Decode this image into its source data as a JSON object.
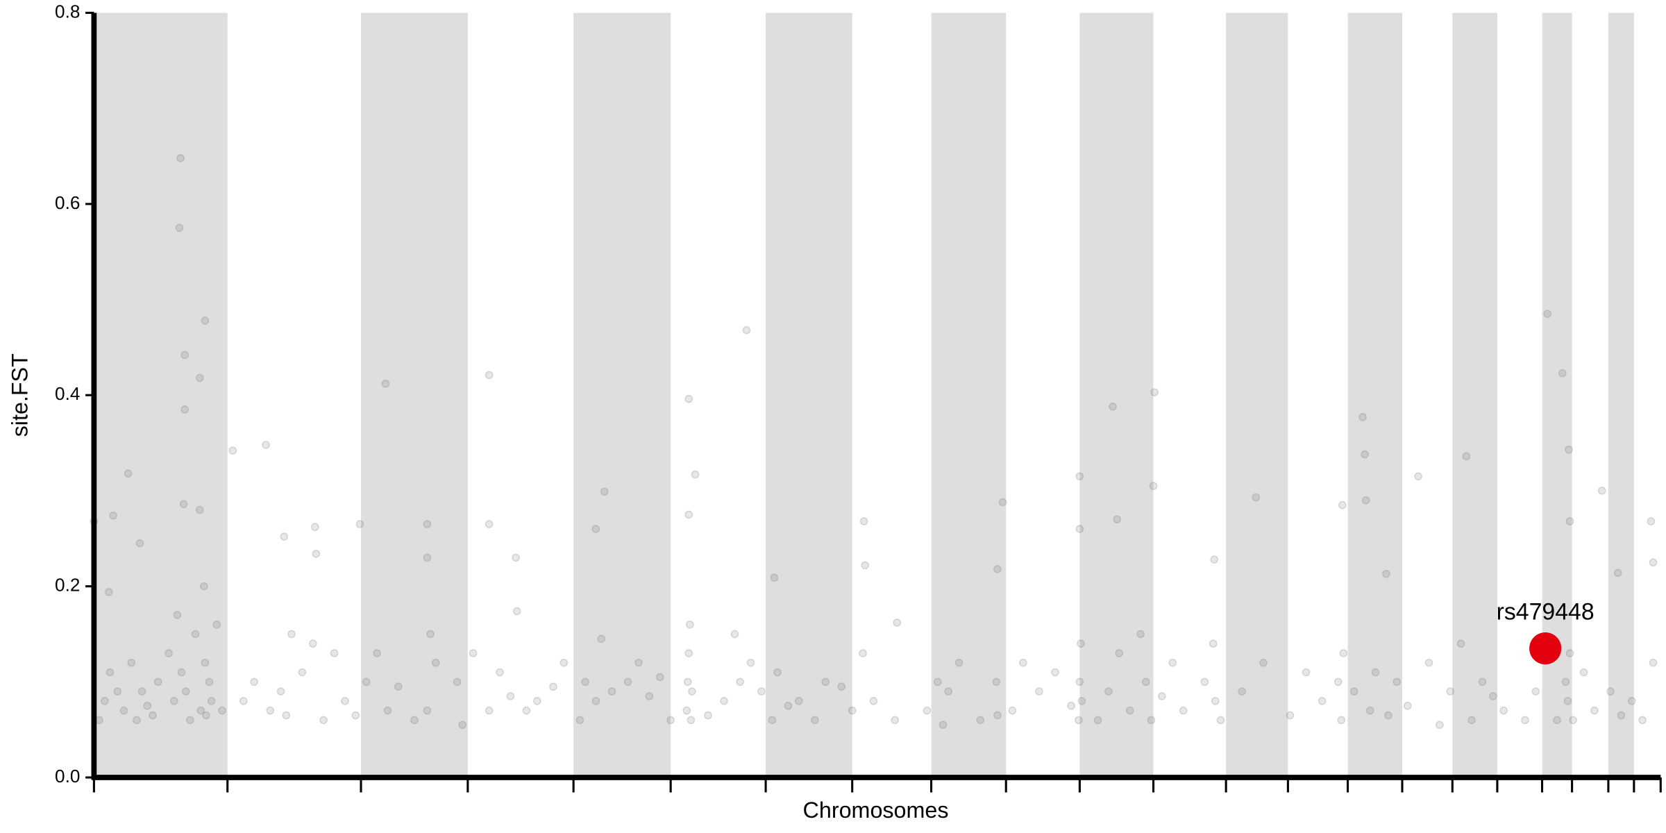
{
  "chart_data": {
    "type": "scatter",
    "xlabel": "Chromosomes",
    "ylabel": "site.FST",
    "xlim": [
      0,
      1467
    ],
    "xticks": [
      0,
      125,
      250,
      350,
      449,
      540,
      629,
      710,
      784,
      854,
      923,
      992,
      1060,
      1118,
      1174,
      1225,
      1272,
      1314,
      1356,
      1384,
      1418,
      1442,
      1467
    ],
    "ylim": [
      0,
      0.8
    ],
    "yticks": [
      {
        "value": 0,
        "label": "0.0"
      },
      0.2,
      0.4,
      0.6,
      0.8
    ],
    "band_color": "#dedede",
    "color": "#555555",
    "x": [
      81,
      80,
      85,
      85,
      99,
      104,
      84,
      99,
      32,
      18,
      0,
      14,
      43,
      130,
      161,
      178,
      207,
      208,
      273,
      249,
      312,
      312,
      370,
      370,
      395,
      396,
      557,
      563,
      557,
      470,
      478,
      611,
      637,
      721,
      722,
      752,
      851,
      846,
      923,
      923,
      954,
      993,
      992,
      958,
      1088,
      1049,
      1188,
      1190,
      1191,
      1169,
      1240,
      1285,
      1210,
      1361,
      1375,
      1381,
      1412,
      1382,
      1458,
      1427,
      1460,
      5,
      10,
      15,
      22,
      28,
      35,
      40,
      45,
      50,
      55,
      60,
      70,
      75,
      78,
      82,
      86,
      90,
      95,
      100,
      104,
      105,
      108,
      103,
      110,
      115,
      120,
      140,
      150,
      165,
      175,
      180,
      185,
      195,
      205,
      215,
      225,
      235,
      245,
      255,
      265,
      275,
      285,
      300,
      312,
      315,
      320,
      340,
      345,
      355,
      370,
      380,
      390,
      405,
      415,
      430,
      440,
      455,
      460,
      470,
      475,
      485,
      500,
      510,
      520,
      530,
      540,
      555,
      556,
      557,
      558,
      559,
      560,
      575,
      590,
      600,
      605,
      615,
      625,
      635,
      640,
      650,
      660,
      675,
      685,
      700,
      710,
      720,
      730,
      750,
      780,
      790,
      795,
      800,
      810,
      830,
      845,
      846,
      860,
      870,
      885,
      900,
      915,
      922,
      923,
      924,
      925,
      940,
      950,
      960,
      970,
      980,
      985,
      990,
      1000,
      1010,
      1020,
      1040,
      1048,
      1050,
      1055,
      1075,
      1095,
      1120,
      1135,
      1150,
      1165,
      1168,
      1170,
      1180,
      1195,
      1200,
      1212,
      1220,
      1230,
      1250,
      1260,
      1270,
      1280,
      1290,
      1300,
      1310,
      1320,
      1340,
      1350,
      1370,
      1378,
      1380,
      1382,
      1385,
      1395,
      1405,
      1420,
      1430,
      1440,
      1450,
      1460
    ],
    "values": [
      0.648,
      0.575,
      0.442,
      0.385,
      0.418,
      0.478,
      0.286,
      0.28,
      0.318,
      0.274,
      0.268,
      0.194,
      0.245,
      0.342,
      0.348,
      0.252,
      0.262,
      0.234,
      0.412,
      0.265,
      0.265,
      0.23,
      0.421,
      0.265,
      0.23,
      0.174,
      0.396,
      0.317,
      0.275,
      0.26,
      0.299,
      0.468,
      0.209,
      0.268,
      0.222,
      0.162,
      0.288,
      0.218,
      0.315,
      0.26,
      0.388,
      0.403,
      0.305,
      0.27,
      0.293,
      0.228,
      0.377,
      0.338,
      0.29,
      0.285,
      0.315,
      0.336,
      0.213,
      0.485,
      0.423,
      0.343,
      0.3,
      0.268,
      0.268,
      0.214,
      0.225,
      0.06,
      0.08,
      0.11,
      0.09,
      0.07,
      0.12,
      0.06,
      0.09,
      0.075,
      0.065,
      0.1,
      0.13,
      0.08,
      0.17,
      0.11,
      0.09,
      0.06,
      0.15,
      0.07,
      0.12,
      0.065,
      0.1,
      0.2,
      0.08,
      0.16,
      0.07,
      0.08,
      0.1,
      0.07,
      0.09,
      0.065,
      0.15,
      0.11,
      0.14,
      0.06,
      0.13,
      0.08,
      0.065,
      0.1,
      0.13,
      0.07,
      0.095,
      0.06,
      0.07,
      0.15,
      0.12,
      0.1,
      0.055,
      0.13,
      0.07,
      0.11,
      0.085,
      0.07,
      0.08,
      0.095,
      0.12,
      0.06,
      0.1,
      0.08,
      0.145,
      0.09,
      0.1,
      0.12,
      0.085,
      0.105,
      0.06,
      0.07,
      0.1,
      0.13,
      0.16,
      0.06,
      0.09,
      0.065,
      0.08,
      0.15,
      0.1,
      0.12,
      0.09,
      0.06,
      0.11,
      0.075,
      0.08,
      0.06,
      0.1,
      0.095,
      0.07,
      0.13,
      0.08,
      0.06,
      0.07,
      0.1,
      0.055,
      0.09,
      0.12,
      0.06,
      0.1,
      0.065,
      0.07,
      0.12,
      0.09,
      0.11,
      0.075,
      0.06,
      0.1,
      0.14,
      0.08,
      0.06,
      0.09,
      0.13,
      0.07,
      0.15,
      0.1,
      0.06,
      0.085,
      0.12,
      0.07,
      0.1,
      0.14,
      0.08,
      0.06,
      0.09,
      0.12,
      0.065,
      0.11,
      0.08,
      0.1,
      0.06,
      0.13,
      0.09,
      0.07,
      0.11,
      0.065,
      0.1,
      0.075,
      0.12,
      0.055,
      0.09,
      0.14,
      0.06,
      0.1,
      0.085,
      0.07,
      0.06,
      0.09,
      0.06,
      0.1,
      0.08,
      0.13,
      0.06,
      0.11,
      0.07,
      0.09,
      0.065,
      0.08,
      0.06,
      0.12
    ],
    "highlight": {
      "label": "rs479448",
      "x": 1359,
      "value": 0.135,
      "color": "#e3000f"
    }
  }
}
